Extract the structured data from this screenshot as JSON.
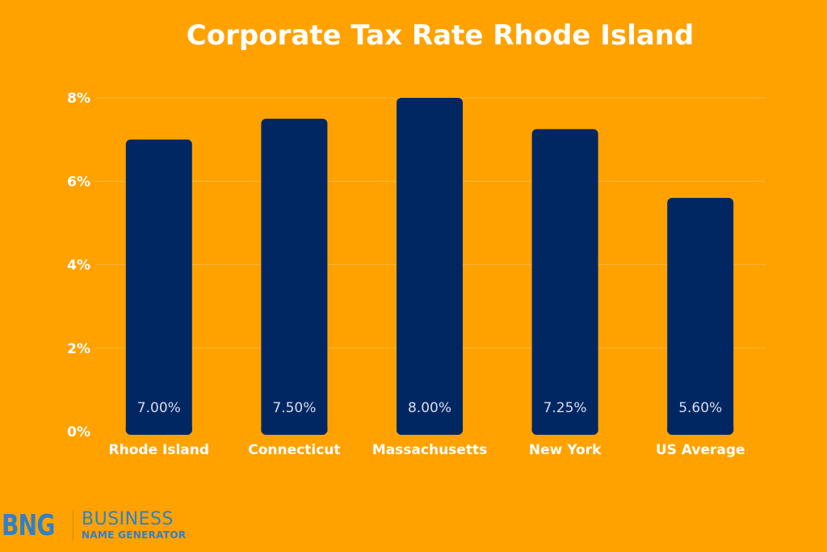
{
  "chart_data": {
    "type": "bar",
    "title": "Corporate Tax Rate Rhode Island",
    "categories": [
      "Rhode Island",
      "Connecticut",
      "Massachusetts",
      "New York",
      "US Average"
    ],
    "values": [
      7.0,
      7.5,
      8.0,
      7.25,
      5.6
    ],
    "data_labels": [
      "7.00%",
      "7.50%",
      "8.00%",
      "7.25%",
      "5.60%"
    ],
    "ylim": [
      0,
      8
    ],
    "yticks": [
      0,
      2,
      4,
      6,
      8
    ],
    "ytick_labels": [
      "0%",
      "2%",
      "4%",
      "6%",
      "8%"
    ],
    "xlabel": "",
    "ylabel": "",
    "grid": true,
    "legend": "none"
  },
  "colors": {
    "background": "#FFA200",
    "bar": "#012763",
    "text": "#ffffff",
    "logo": "#2F80C8"
  },
  "logo": {
    "mark": "BNG",
    "line1": "BUSINESS",
    "line2": "NAME GENERATOR"
  }
}
